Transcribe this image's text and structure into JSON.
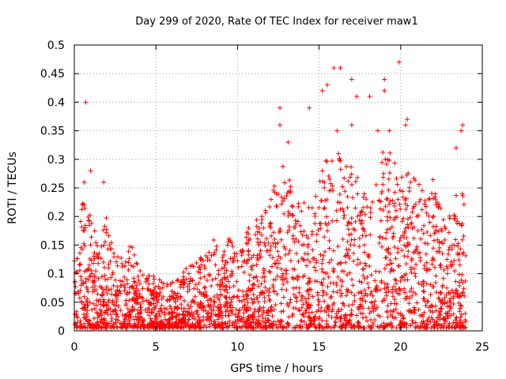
{
  "chart_data": {
    "type": "scatter",
    "title": "Day 299 of 2020, Rate Of TEC Index for receiver maw1",
    "xlabel": "GPS time / hours",
    "ylabel": "ROTI / TECUs",
    "xlim": [
      0,
      25
    ],
    "ylim": [
      0,
      0.5
    ],
    "x_ticks": [
      "0",
      "5",
      "10",
      "15",
      "20",
      "25"
    ],
    "y_ticks": [
      "0",
      "0.05",
      "0.1",
      "0.15",
      "0.2",
      "0.25",
      "0.3",
      "0.35",
      "0.4",
      "0.45",
      "0.5"
    ],
    "grid": true,
    "legend": "none",
    "marker": "+",
    "color": "#ff0000",
    "x_data_range": [
      0,
      24
    ],
    "series": [
      {
        "envelope_x": [
          0,
          0.5,
          1,
          1.5,
          2,
          2.5,
          3,
          3.5,
          4,
          4.5,
          5,
          5.5,
          6,
          6.5,
          7,
          7.5,
          8,
          8.5,
          9,
          9.5,
          10,
          10.5,
          11,
          11.5,
          12,
          12.5,
          13,
          13.5,
          14,
          14.5,
          15,
          15.5,
          16,
          16.5,
          17,
          17.5,
          18,
          18.5,
          19,
          19.5,
          20,
          20.5,
          21,
          21.5,
          22,
          22.5,
          23,
          23.5,
          24
        ],
        "envelope_y": [
          0.13,
          0.22,
          0.2,
          0.14,
          0.2,
          0.13,
          0.12,
          0.15,
          0.1,
          0.1,
          0.09,
          0.08,
          0.08,
          0.1,
          0.11,
          0.12,
          0.14,
          0.16,
          0.14,
          0.16,
          0.14,
          0.17,
          0.19,
          0.2,
          0.22,
          0.3,
          0.3,
          0.22,
          0.22,
          0.23,
          0.27,
          0.3,
          0.33,
          0.28,
          0.3,
          0.25,
          0.23,
          0.27,
          0.32,
          0.3,
          0.3,
          0.27,
          0.27,
          0.25,
          0.28,
          0.2,
          0.2,
          0.24,
          0.27
        ],
        "outliers": [
          [
            0.7,
            0.4
          ],
          [
            1.0,
            0.28
          ],
          [
            0.6,
            0.26
          ],
          [
            1.8,
            0.26
          ],
          [
            12.6,
            0.39
          ],
          [
            12.6,
            0.36
          ],
          [
            13.1,
            0.33
          ],
          [
            14.4,
            0.39
          ],
          [
            15.2,
            0.42
          ],
          [
            15.5,
            0.43
          ],
          [
            15.9,
            0.46
          ],
          [
            16.3,
            0.46
          ],
          [
            17.0,
            0.44
          ],
          [
            17.3,
            0.41
          ],
          [
            18.1,
            0.41
          ],
          [
            19.0,
            0.44
          ],
          [
            19.0,
            0.42
          ],
          [
            19.9,
            0.47
          ],
          [
            20.4,
            0.37
          ],
          [
            17.0,
            0.36
          ],
          [
            16.1,
            0.35
          ],
          [
            18.6,
            0.35
          ],
          [
            19.3,
            0.35
          ],
          [
            20.3,
            0.36
          ],
          [
            23.8,
            0.36
          ],
          [
            23.7,
            0.35
          ],
          [
            23.4,
            0.32
          ]
        ]
      }
    ]
  }
}
